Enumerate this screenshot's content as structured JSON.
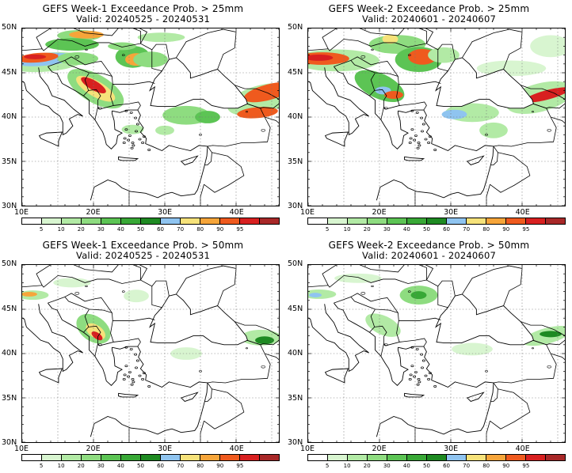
{
  "panels": [
    {
      "title": "GEFS Week-1 Exceedance Prob. > 25mm",
      "valid": "Valid: 20240525 - 20240531"
    },
    {
      "title": "GEFS Week-2 Exceedance Prob. > 25mm",
      "valid": "Valid: 20240601 - 20240607"
    },
    {
      "title": "GEFS Week-1 Exceedance Prob. > 50mm",
      "valid": "Valid: 20240525 - 20240531"
    },
    {
      "title": "GEFS Week-2 Exceedance Prob. > 50mm",
      "valid": "Valid: 20240601 - 20240607"
    }
  ],
  "lat_labels": [
    "50N",
    "45N",
    "40N",
    "35N",
    "30N"
  ],
  "lon_labels": [
    "10E",
    "20E",
    "30E",
    "40E"
  ],
  "colorbar": {
    "labels": [
      "5",
      "10",
      "20",
      "30",
      "40",
      "50",
      "60",
      "70",
      "80",
      "90",
      "95"
    ],
    "colors": [
      "#ffffff",
      "#d8f5d0",
      "#b2eaa5",
      "#8edc80",
      "#5cc454",
      "#38a836",
      "#1e8a22",
      "#8fc4f0",
      "#f6e27a",
      "#f6a53a",
      "#ef5a1e",
      "#d82020",
      "#a82828"
    ]
  },
  "map_extent": {
    "lon": [
      10,
      46
    ],
    "lat": [
      30,
      50
    ]
  }
}
